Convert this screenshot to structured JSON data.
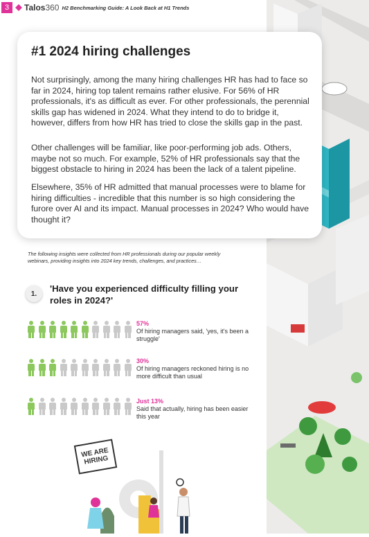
{
  "header": {
    "page_number": "3",
    "brand_name": "Talos",
    "brand_number": "360",
    "doc_title": "H2 Benchmarking Guide: A Look Back at H1 Trends"
  },
  "card": {
    "heading": "#1 2024 hiring challenges",
    "para1": "Not surprisingly, among the many hiring challenges HR has had to face so far in 2024, hiring top talent remains rather elusive. For 56% of HR professionals, it's as difficult as ever. For other professionals, the perennial skills gap has widened in 2024. What they intend to do to bridge it, however, differs from how HR has tried to close the skills gap in the past.",
    "para2": "Other challenges will be familiar, like poor-performing job ads. Others, maybe not so much. For example, 52% of HR professionals say that the biggest obstacle to hiring in 2024 has been the lack of a talent pipeline.",
    "para3": "Elsewhere, 35% of HR admitted that manual processes were to blame for hiring difficulties - incredible that this number is so high considering the furore over AI and its impact. Manual processes in 2024? Who would have thought it?"
  },
  "intro": "The following insights were collected from HR professionals during our popular weekly webinars, providing insights into 2024 key trends, challenges, and practices…",
  "question": {
    "number": "1.",
    "text": "'Have you experienced difficulty filling your roles in 2024?'"
  },
  "stats": [
    {
      "pct": "57%",
      "label": "Of hiring managers said, 'yes, it's been a struggle'",
      "fraction": 0.57
    },
    {
      "pct": "30%",
      "label": "Of hiring managers reckoned hiring is no more difficult than usual",
      "fraction": 0.3
    },
    {
      "pct": "Just 13%",
      "label": "Said that actually, hiring has been easier this year",
      "fraction": 0.13
    }
  ],
  "illustration": {
    "sign_text": "WE ARE HIRING"
  },
  "colors": {
    "accent": "#e0339a",
    "icon_on": "#8cc85d",
    "icon_off": "#c9c9c9"
  }
}
